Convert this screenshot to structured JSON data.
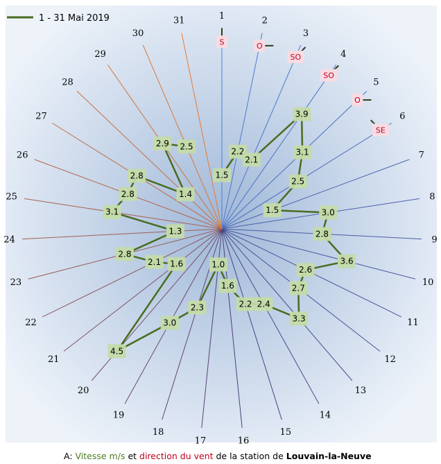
{
  "legend": {
    "label": "1 - 31 Mai 2019"
  },
  "caption": {
    "prefix": "A: ",
    "speed_text": "Vitesse m/s",
    "and_text": " et ",
    "direction_text": "direction du vent",
    "rest_text": " de la station de ",
    "station_text": "Louvain-la-Neuve"
  },
  "colors": {
    "series": "#4a6b1f",
    "value_box": "#c4dba8",
    "dir_box": "#f7dce4",
    "dir_text": "#c0001d",
    "spoke_first": "#4a7fd4",
    "spoke_mid": "#4a3f7a",
    "spoke_last": "#e87a30"
  },
  "chart_data": {
    "type": "line",
    "coordinate_system": "polar",
    "title": "",
    "series": [
      {
        "name": "1 - 31 Mai 2019",
        "x": [
          1,
          2,
          3,
          4,
          5,
          6,
          7,
          8,
          9,
          10,
          11,
          12,
          13,
          14,
          15,
          16,
          17,
          18,
          19,
          20,
          21,
          22,
          23,
          24,
          25,
          26,
          27,
          28,
          29,
          30,
          31
        ],
        "values": [
          1.5,
          2.2,
          2.1,
          3.9,
          3.1,
          2.5,
          1.5,
          3.0,
          2.8,
          3.6,
          2.6,
          2.7,
          3.3,
          2.4,
          2.2,
          1.6,
          1.0,
          2.3,
          3.0,
          4.5,
          1.6,
          2.1,
          2.8,
          1.3,
          3.1,
          2.8,
          2.8,
          1.4,
          2.9,
          2.5,
          null
        ],
        "labels": [
          "1.5",
          "2.2",
          "2.1",
          "3.9",
          "3.1",
          "2.5",
          "1.5",
          "3.0",
          "2.8",
          "3.6",
          "2.6",
          "2.7",
          "3.3",
          "2.4",
          "2.2",
          "1.6",
          "1.0",
          "2.3",
          "3.0",
          "4.5",
          "1.6",
          "2.1",
          "2.8",
          "1.3",
          "3.1",
          "2.8",
          "2.8",
          "1.4",
          "2.9",
          "2.5",
          ""
        ]
      }
    ],
    "direction_labels": [
      {
        "day": 1,
        "text": "S"
      },
      {
        "day": 2,
        "text": "O"
      },
      {
        "day": 3,
        "text": "SO"
      },
      {
        "day": 4,
        "text": "SO"
      },
      {
        "day": 5,
        "text": "O"
      },
      {
        "day": 6,
        "text": "SE"
      }
    ],
    "r_max": 6,
    "grid": false,
    "legend_position": "top-left"
  }
}
